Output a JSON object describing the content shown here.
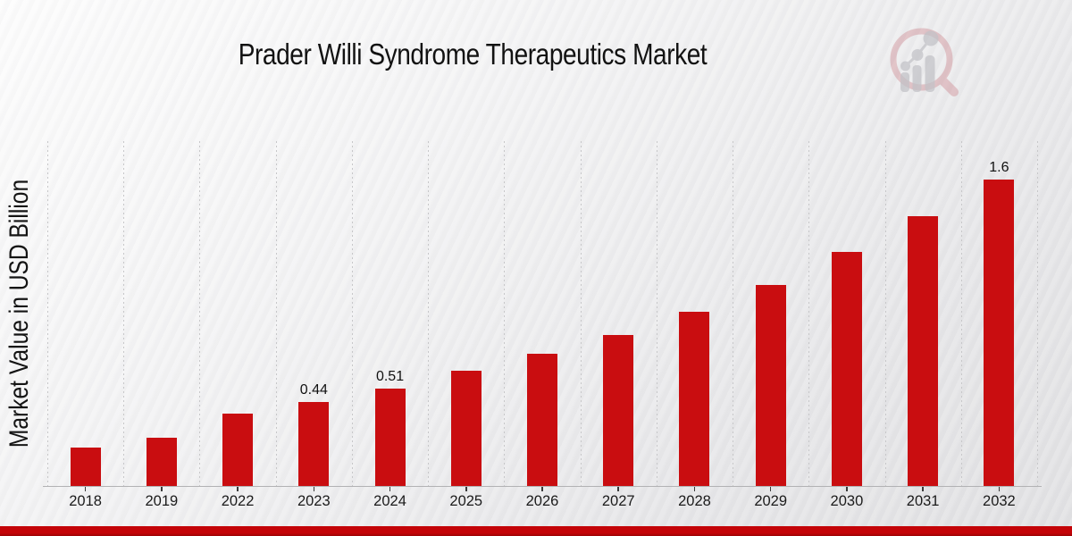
{
  "chart_data": {
    "type": "bar",
    "title": "Prader Willi Syndrome Therapeutics Market",
    "ylabel": "Market Value in USD Billion",
    "xlabel": "",
    "categories": [
      "2018",
      "2019",
      "2022",
      "2023",
      "2024",
      "2025",
      "2026",
      "2027",
      "2028",
      "2029",
      "2030",
      "2031",
      "2032"
    ],
    "values": [
      0.2,
      0.25,
      0.38,
      0.44,
      0.51,
      0.6,
      0.69,
      0.79,
      0.91,
      1.05,
      1.22,
      1.41,
      1.6
    ],
    "bar_labels": [
      "",
      "",
      "",
      "0.44",
      "0.51",
      "",
      "",
      "",
      "",
      "",
      "",
      "",
      "1.6"
    ],
    "ylim": [
      0,
      1.8
    ],
    "bar_color": "#c90d10",
    "grid": "vertical dotted gridlines between categories, no horizontal gridlines, no y-axis tick labels",
    "legend": "none"
  },
  "branding": {
    "logo": "magnifier-growth-chart-logo",
    "logo_ring_color": "#c2626c",
    "logo_bars_color": "#c2c2c7"
  },
  "footer": {
    "bar_color": "#c40408",
    "bar_edge_color": "#9c0406"
  }
}
